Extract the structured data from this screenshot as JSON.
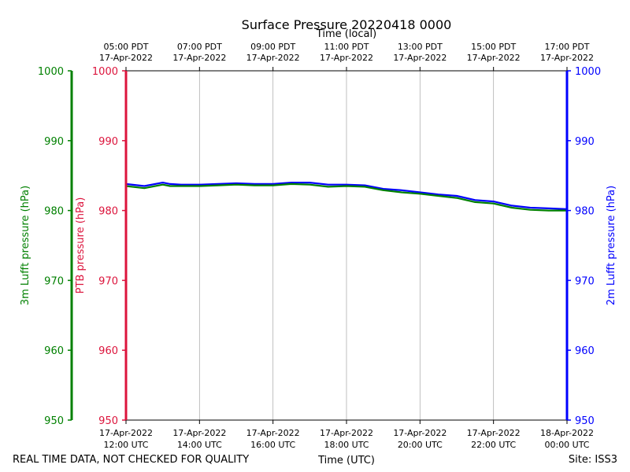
{
  "chart_data": {
    "type": "line",
    "title": "Surface Pressure 20220418 0000",
    "top_axis_label": "Time (local)",
    "xlabel": "Time (UTC)",
    "x_unit": "hours since 17-Apr-2022 12:00 UTC",
    "xlim": [
      0,
      12
    ],
    "bottom_ticks": [
      {
        "x": 0,
        "line1": "17-Apr-2022",
        "line2": "12:00 UTC"
      },
      {
        "x": 2,
        "line1": "17-Apr-2022",
        "line2": "14:00 UTC"
      },
      {
        "x": 4,
        "line1": "17-Apr-2022",
        "line2": "16:00 UTC"
      },
      {
        "x": 6,
        "line1": "17-Apr-2022",
        "line2": "18:00 UTC"
      },
      {
        "x": 8,
        "line1": "17-Apr-2022",
        "line2": "20:00 UTC"
      },
      {
        "x": 10,
        "line1": "17-Apr-2022",
        "line2": "22:00 UTC"
      },
      {
        "x": 12,
        "line1": "18-Apr-2022",
        "line2": "00:00 UTC"
      }
    ],
    "top_ticks": [
      {
        "x": 0,
        "line1": "05:00 PDT",
        "line2": "17-Apr-2022"
      },
      {
        "x": 2,
        "line1": "07:00 PDT",
        "line2": "17-Apr-2022"
      },
      {
        "x": 4,
        "line1": "09:00 PDT",
        "line2": "17-Apr-2022"
      },
      {
        "x": 6,
        "line1": "11:00 PDT",
        "line2": "17-Apr-2022"
      },
      {
        "x": 8,
        "line1": "13:00 PDT",
        "line2": "17-Apr-2022"
      },
      {
        "x": 10,
        "line1": "15:00 PDT",
        "line2": "17-Apr-2022"
      },
      {
        "x": 12,
        "line1": "17:00 PDT",
        "line2": "17-Apr-2022"
      }
    ],
    "ylim": [
      950,
      1000
    ],
    "y_ticks": [
      950,
      960,
      970,
      980,
      990,
      1000
    ],
    "y_axes": [
      {
        "label": "3m Lufft pressure (hPa)",
        "color": "#008000"
      },
      {
        "label": "PTB pressure (hPa)",
        "color": "#dc143c"
      },
      {
        "label": "2m Lufft pressure (hPa)",
        "color": "#0000ff"
      }
    ],
    "grid": "vertical",
    "series": [
      {
        "name": "2m Lufft pressure",
        "color": "#0000ff",
        "x": [
          0,
          0.5,
          1.0,
          1.2,
          1.5,
          2.0,
          2.5,
          3.0,
          3.5,
          4.0,
          4.5,
          5.0,
          5.5,
          6.0,
          6.5,
          7.0,
          7.5,
          8.0,
          8.5,
          9.0,
          9.5,
          10.0,
          10.5,
          11.0,
          11.5,
          12.0
        ],
        "y": [
          983.8,
          983.5,
          984.0,
          983.8,
          983.7,
          983.7,
          983.8,
          983.9,
          983.8,
          983.8,
          984.0,
          984.0,
          983.7,
          983.7,
          983.6,
          983.1,
          982.9,
          982.6,
          982.3,
          982.1,
          981.5,
          981.3,
          980.7,
          980.4,
          980.3,
          980.2
        ]
      },
      {
        "name": "3m Lufft pressure",
        "color": "#008000",
        "x": [
          0,
          0.5,
          1.0,
          1.2,
          1.5,
          2.0,
          2.5,
          3.0,
          3.5,
          4.0,
          4.5,
          5.0,
          5.5,
          6.0,
          6.5,
          7.0,
          7.5,
          8.0,
          8.5,
          9.0,
          9.5,
          10.0,
          10.5,
          11.0,
          11.5,
          12.0
        ],
        "y": [
          983.5,
          983.2,
          983.7,
          983.5,
          983.5,
          983.5,
          983.6,
          983.7,
          983.6,
          983.6,
          983.8,
          983.7,
          983.4,
          983.5,
          983.4,
          982.9,
          982.6,
          982.4,
          982.1,
          981.8,
          981.2,
          981.0,
          980.4,
          980.1,
          980.0,
          980.0
        ]
      }
    ]
  },
  "footer": {
    "left_note": "REAL TIME DATA, NOT CHECKED FOR QUALITY",
    "site": "Site: ISS3"
  }
}
